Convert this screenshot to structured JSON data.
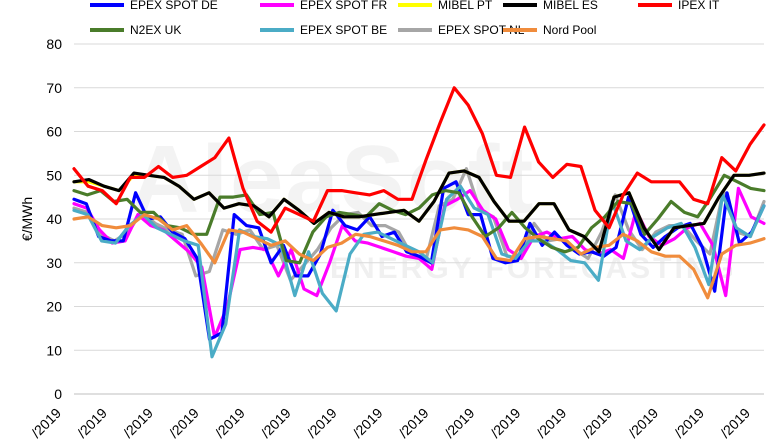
{
  "watermark": {
    "main": "AleaSoft",
    "sub": "ENERGY FORECASTING"
  },
  "chart_data": {
    "type": "line",
    "title": "",
    "xlabel": "",
    "ylabel": "€/MWh",
    "ylim": [
      0,
      80
    ],
    "yticks": [
      0,
      10,
      20,
      30,
      40,
      50,
      60,
      70,
      80
    ],
    "xtick_label": "/2019",
    "xtick_count": 16,
    "grid": true,
    "legend_position": "top",
    "points": 62,
    "series": [
      {
        "name": "EPEX SPOT DE",
        "color": "#0000ff",
        "values": [
          44.5,
          43.5,
          36,
          35,
          35,
          46,
          40,
          40.5,
          37,
          35.5,
          31,
          12.5,
          14,
          41,
          38.5,
          38,
          30,
          34,
          27,
          27,
          32,
          42,
          38.5,
          37.5,
          40.5,
          36,
          37,
          32.5,
          31.5,
          30,
          47,
          48.5,
          41,
          41,
          31,
          30,
          30.5,
          39,
          34,
          37,
          34,
          32,
          32.5,
          31.5,
          33.5,
          45,
          36.5,
          33.5,
          36,
          38,
          39,
          33.5,
          23.5,
          46,
          34.5,
          37,
          43
        ]
      },
      {
        "name": "EPEX SPOT FR",
        "color": "#ff00ff",
        "values": [
          43.5,
          42.5,
          37.5,
          34.5,
          35,
          41,
          38.5,
          37.5,
          35,
          32.5,
          29,
          13,
          20,
          33,
          33.5,
          33,
          27,
          33,
          24,
          22.5,
          30,
          38.5,
          35,
          34.5,
          33.5,
          32.5,
          31.5,
          31,
          28.5,
          43,
          44.5,
          46.5,
          42,
          40,
          33,
          31,
          36,
          37,
          35.5,
          36,
          33,
          32,
          33,
          31,
          42,
          36,
          34,
          35.5,
          38,
          39,
          34,
          22.5,
          47,
          40.5,
          39
        ]
      },
      {
        "name": "MIBEL PT",
        "color": "#ffff00",
        "values": [
          48.5,
          48.5,
          47.5,
          46.5,
          50,
          50,
          49.5,
          47.5,
          44.5,
          46,
          42.5,
          43.5,
          43,
          40.5,
          44.5,
          42,
          39,
          41.5,
          40.5,
          40.5,
          41,
          41.5,
          42,
          39.5,
          44,
          50.5,
          51,
          49.5,
          44,
          39.5,
          39.5,
          43.5,
          43.5,
          37.5,
          36,
          32.5,
          45,
          46,
          38,
          33,
          38,
          38.5,
          39,
          45,
          50,
          50,
          50.5
        ]
      },
      {
        "name": "MIBEL ES",
        "color": "#000000",
        "values": [
          48.5,
          49,
          47.5,
          46.5,
          50.5,
          50,
          49.5,
          47.5,
          44.5,
          46,
          42.5,
          43.5,
          43,
          40.5,
          44.5,
          42,
          39,
          41.5,
          40.5,
          40.5,
          41,
          41.5,
          42,
          39.5,
          44,
          50.5,
          51,
          49.5,
          44,
          39.5,
          39.5,
          43.5,
          43.5,
          37.5,
          36,
          32.5,
          45,
          46,
          38,
          33,
          38,
          38.5,
          39,
          45,
          50,
          50,
          50.5
        ]
      },
      {
        "name": "IPEX IT",
        "color": "#ff0000",
        "values": [
          51.5,
          47.5,
          46.5,
          43.5,
          49.5,
          49.5,
          52,
          49.5,
          50,
          52,
          54,
          58.5,
          47,
          39.5,
          37,
          42.5,
          41,
          39.5,
          46.5,
          46.5,
          46,
          45.5,
          46.5,
          44.5,
          44.5,
          53.5,
          62,
          70,
          66,
          59.5,
          50,
          49.5,
          61,
          53,
          49.5,
          52.5,
          52,
          42,
          38,
          45.5,
          50.5,
          48.5,
          48.5,
          48.5,
          44.5,
          43.5,
          54,
          51,
          57,
          61.5
        ]
      },
      {
        "name": "N2EX UK",
        "color": "#4a7c2a",
        "values": [
          46.5,
          45.5,
          46.5,
          44,
          44.5,
          41.5,
          41.5,
          38.5,
          38,
          36.5,
          36.5,
          45,
          45,
          45.5,
          41,
          41.5,
          30.5,
          30,
          37,
          40.5,
          41.5,
          41,
          40.5,
          43.5,
          42,
          41,
          42.5,
          45.5,
          46.5,
          46,
          40.5,
          36,
          38,
          41.5,
          38,
          35.5,
          33.5,
          32.5,
          33.5,
          38,
          40.5,
          44,
          43.5,
          36.5,
          40,
          44,
          41.5,
          40.5,
          45,
          50,
          48.5,
          47,
          46.5
        ]
      },
      {
        "name": "EPEX SPOT BE",
        "color": "#4bacc6",
        "values": [
          42,
          41,
          35,
          34.5,
          38.5,
          41,
          38,
          36.5,
          35,
          34,
          8.5,
          16,
          37.5,
          36,
          35.5,
          34,
          22.5,
          32.5,
          23,
          19,
          32,
          36.5,
          37,
          35.5,
          34,
          32.5,
          30,
          44.5,
          47.5,
          42.5,
          41,
          32,
          31,
          35,
          35,
          33,
          30.5,
          30,
          26,
          44,
          35,
          33,
          36,
          38,
          39,
          33.5,
          25,
          45.5,
          38,
          36,
          43
        ]
      },
      {
        "name": "EPEX SPOT NL",
        "color": "#a6a6a6",
        "values": [
          42.5,
          41.5,
          36.5,
          35,
          37,
          41.5,
          39,
          37.5,
          36.5,
          27,
          28,
          37.5,
          36.5,
          37.5,
          33,
          34,
          26,
          29.5,
          33,
          38,
          41,
          41.5,
          38.5,
          38.5,
          37,
          31.5,
          30.5,
          43,
          44.5,
          51.5,
          42,
          40.5,
          31.5,
          31,
          39,
          35,
          35.5,
          33,
          31,
          37,
          45.5,
          37.5,
          33,
          37,
          38.5,
          38.5,
          35,
          32,
          46.5,
          37,
          36,
          44
        ]
      },
      {
        "name": "Nord Pool",
        "color": "#f08c3c",
        "values": [
          40,
          40.5,
          38.5,
          38,
          38.5,
          41,
          40,
          37.5,
          38.5,
          34.5,
          30,
          37.5,
          37,
          35.5,
          34,
          35,
          32,
          30.5,
          33.5,
          34.5,
          36.5,
          36,
          35,
          34,
          32.5,
          32.5,
          37.5,
          38,
          37.5,
          36,
          31,
          30.5,
          35.5,
          36,
          35.5,
          35,
          32,
          33.5,
          34,
          36.5,
          35,
          32.5,
          31.5,
          31.5,
          28.5,
          22,
          32,
          34,
          34.5,
          35.5
        ]
      }
    ]
  }
}
